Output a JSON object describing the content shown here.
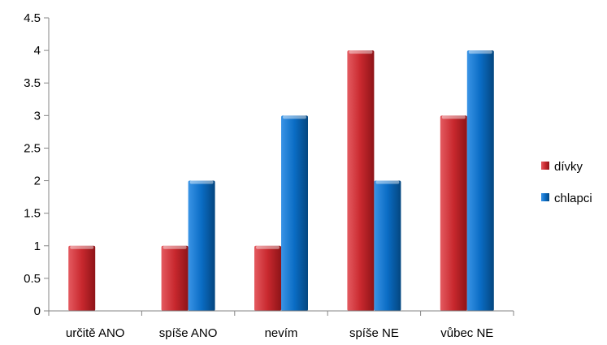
{
  "chart_data": {
    "type": "bar",
    "title": "",
    "xlabel": "",
    "ylabel": "",
    "categories": [
      "určitě ANO",
      "spíše ANO",
      "nevím",
      "spíše NE",
      "vůbec NE"
    ],
    "series": [
      {
        "name": "dívky",
        "values": [
          1,
          1,
          1,
          4,
          3
        ],
        "color": "#c0282e"
      },
      {
        "name": "chlapci",
        "values": [
          0,
          2,
          3,
          2,
          4
        ],
        "color": "#0a68bd"
      }
    ],
    "ylim": [
      0,
      4.5
    ],
    "yticks": [
      "0",
      "0.5",
      "1",
      "1.5",
      "2",
      "2.5",
      "3",
      "3.5",
      "4",
      "4.5"
    ],
    "grid": false,
    "legend_position": "right"
  }
}
